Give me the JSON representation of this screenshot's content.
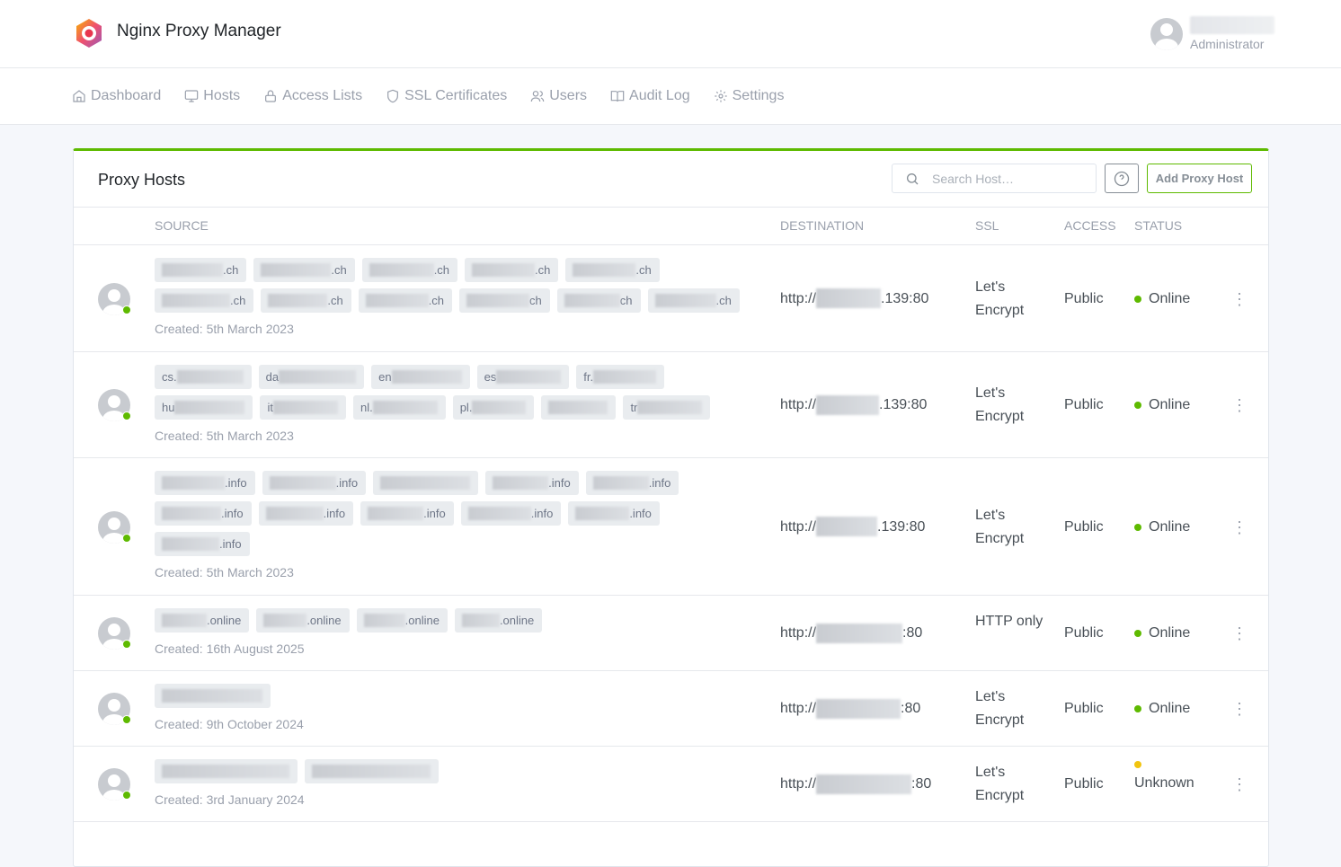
{
  "app": {
    "title": "Nginx Proxy Manager"
  },
  "user": {
    "role": "Administrator"
  },
  "nav": [
    {
      "label": "Dashboard",
      "icon": "home-icon"
    },
    {
      "label": "Hosts",
      "icon": "monitor-icon"
    },
    {
      "label": "Access Lists",
      "icon": "lock-icon"
    },
    {
      "label": "SSL Certificates",
      "icon": "shield-icon"
    },
    {
      "label": "Users",
      "icon": "users-icon"
    },
    {
      "label": "Audit Log",
      "icon": "book-icon"
    },
    {
      "label": "Settings",
      "icon": "gear-icon"
    }
  ],
  "card": {
    "title": "Proxy Hosts",
    "search_placeholder": "Search Host…",
    "add_label": "Add Proxy Host",
    "help_icon": "help-circle-icon"
  },
  "columns": {
    "source": "SOURCE",
    "destination": "DESTINATION",
    "ssl": "SSL",
    "access": "ACCESS",
    "status": "STATUS"
  },
  "colors": {
    "accent": "#5eba00",
    "online": "#5eba00",
    "unknown": "#f1c40f"
  },
  "rows": [
    {
      "tags": [
        {
          "s": ".ch"
        },
        {
          "s": ".ch"
        },
        {
          "s": ".ch"
        },
        {
          "s": ".ch"
        },
        {
          "s": ".ch"
        },
        {
          "s": ".ch"
        },
        {
          "s": ".ch"
        },
        {
          "s": ".ch"
        },
        {
          "s": "ch"
        },
        {
          "s": "ch"
        },
        {
          "s": ".ch"
        }
      ],
      "created": "Created: 5th March 2023",
      "dest_prefix": "http://",
      "dest_suffix": ".139:80",
      "ssl": "Let's Encrypt",
      "access": "Public",
      "status": "Online"
    },
    {
      "tags": [
        {
          "p": "cs."
        },
        {
          "p": "da"
        },
        {
          "p": "en"
        },
        {
          "p": "es"
        },
        {
          "p": "fr."
        },
        {
          "p": "hu"
        },
        {
          "p": "it"
        },
        {
          "p": "nl."
        },
        {
          "p": "pl."
        },
        {
          "p": ""
        },
        {
          "p": "tr"
        }
      ],
      "created": "Created: 5th March 2023",
      "dest_prefix": "http://",
      "dest_suffix": ".139:80",
      "ssl": "Let's Encrypt",
      "access": "Public",
      "status": "Online"
    },
    {
      "tags": [
        {
          "s": ".info"
        },
        {
          "s": ".info"
        },
        {
          "s": ""
        },
        {
          "s": ".info"
        },
        {
          "s": ".info"
        },
        {
          "s": ".info"
        },
        {
          "s": ".info"
        },
        {
          "s": ".info"
        },
        {
          "s": ".info"
        },
        {
          "s": ".info"
        },
        {
          "s": ".info"
        }
      ],
      "created": "Created: 5th March 2023",
      "dest_prefix": "http://",
      "dest_suffix": ".139:80",
      "ssl": "Let's Encrypt",
      "access": "Public",
      "status": "Online"
    },
    {
      "tags": [
        {
          "s": ".online"
        },
        {
          "s": ".online"
        },
        {
          "s": ".online"
        },
        {
          "s": ".online"
        }
      ],
      "created": "Created: 16th August 2025",
      "dest_prefix": "http://",
      "dest_suffix": ":80",
      "ssl": "HTTP only",
      "access": "Public",
      "status": "Online"
    },
    {
      "tags": [
        {
          "s": ""
        }
      ],
      "created": "Created: 9th October 2024",
      "dest_prefix": "http://",
      "dest_suffix": ":80",
      "ssl": "Let's Encrypt",
      "access": "Public",
      "status": "Online"
    },
    {
      "tags": [
        {
          "s": ""
        },
        {
          "s": ""
        }
      ],
      "created": "Created: 3rd January 2024",
      "dest_prefix": "http://",
      "dest_suffix": ":80",
      "ssl": "Let's Encrypt",
      "access": "Public",
      "status": "Unknown"
    }
  ]
}
